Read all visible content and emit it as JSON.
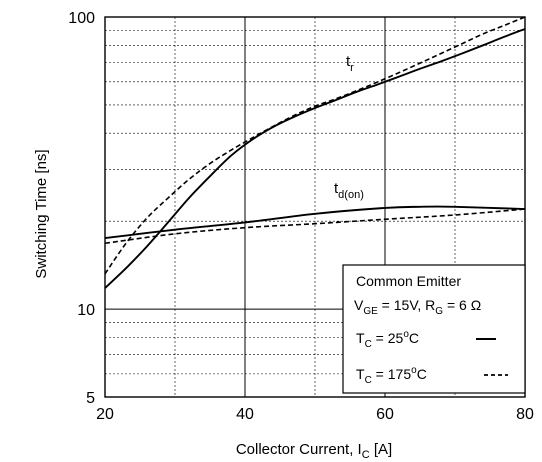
{
  "chart_data": {
    "type": "line",
    "xlabel": "Collector Current, I",
    "xlabel_sub": "C",
    "xlabel_unit": " [A]",
    "ylabel": "Switching Time [ns]",
    "xlim": [
      20,
      80
    ],
    "ylim": [
      5,
      100
    ],
    "yscale": "log",
    "x_ticks": [
      20,
      40,
      60,
      80
    ],
    "x_tick_labels": [
      "20",
      "40",
      "60",
      "80"
    ],
    "y_ticks": [
      5,
      10,
      100
    ],
    "y_tick_labels": [
      "5",
      "10",
      "100"
    ],
    "grid": true,
    "curve_labels": {
      "tr": {
        "main": "t",
        "sub": "r"
      },
      "td": {
        "main": "t",
        "sub": "d(on)"
      }
    },
    "series": [
      {
        "curve": "tr",
        "condition": "T_C = 25°C",
        "line_style": "solid",
        "x": [
          20,
          23,
          26,
          29,
          32,
          35,
          38,
          41,
          44,
          47,
          50,
          53,
          56,
          59,
          62,
          65,
          68,
          71,
          74,
          77,
          80
        ],
        "y": [
          11.8,
          13.8,
          16.4,
          19.8,
          24.0,
          28.5,
          33.5,
          38.0,
          42.0,
          45.5,
          48.8,
          52.0,
          55.5,
          58.8,
          62.5,
          66.5,
          70.5,
          75.0,
          80.0,
          85.5,
          91.0
        ]
      },
      {
        "curve": "tr",
        "condition": "T_C = 175°C",
        "line_style": "dashed",
        "x": [
          20,
          23,
          26,
          29,
          32,
          35,
          38,
          41,
          44,
          47,
          50,
          53,
          56,
          59,
          62,
          65,
          68,
          71,
          74,
          77,
          80
        ],
        "y": [
          13.2,
          16.8,
          20.5,
          24.0,
          27.8,
          31.5,
          35.0,
          38.5,
          42.2,
          46.0,
          49.5,
          52.5,
          56.0,
          60.0,
          64.5,
          69.5,
          75.0,
          81.0,
          87.5,
          93.5,
          100.0
        ]
      },
      {
        "curve": "td(on)",
        "condition": "T_C = 25°C",
        "line_style": "solid",
        "x": [
          20,
          30,
          40,
          50,
          60,
          65,
          70,
          80
        ],
        "y": [
          17.5,
          18.7,
          19.8,
          21.2,
          22.2,
          22.4,
          22.4,
          22.0
        ]
      },
      {
        "curve": "td(on)",
        "condition": "T_C = 175°C",
        "line_style": "dashed",
        "x": [
          20,
          30,
          40,
          50,
          60,
          70,
          80
        ],
        "y": [
          16.8,
          18.1,
          19.0,
          19.6,
          20.3,
          21.0,
          22.0
        ]
      }
    ],
    "legend": {
      "placement": "bottom-right",
      "title": "Common Emitter",
      "conditions": {
        "vge_main": "V",
        "vge_sub": "GE",
        "vge_mid": " = 15V, R",
        "rg_sub": "G",
        "rg_tail": " = 6 Ω"
      },
      "entries": [
        {
          "t_main": "T",
          "t_sub": "C",
          "t_val": " = 25",
          "t_sup": "o",
          "t_unit": "C",
          "line_style": "solid"
        },
        {
          "t_main": "T",
          "t_sub": "C",
          "t_val": " = 175",
          "t_sup": "o",
          "t_unit": "C",
          "line_style": "dashed"
        }
      ]
    },
    "colors": {
      "line": "#000000",
      "grid": "#000000",
      "background": "#ffffff"
    }
  }
}
